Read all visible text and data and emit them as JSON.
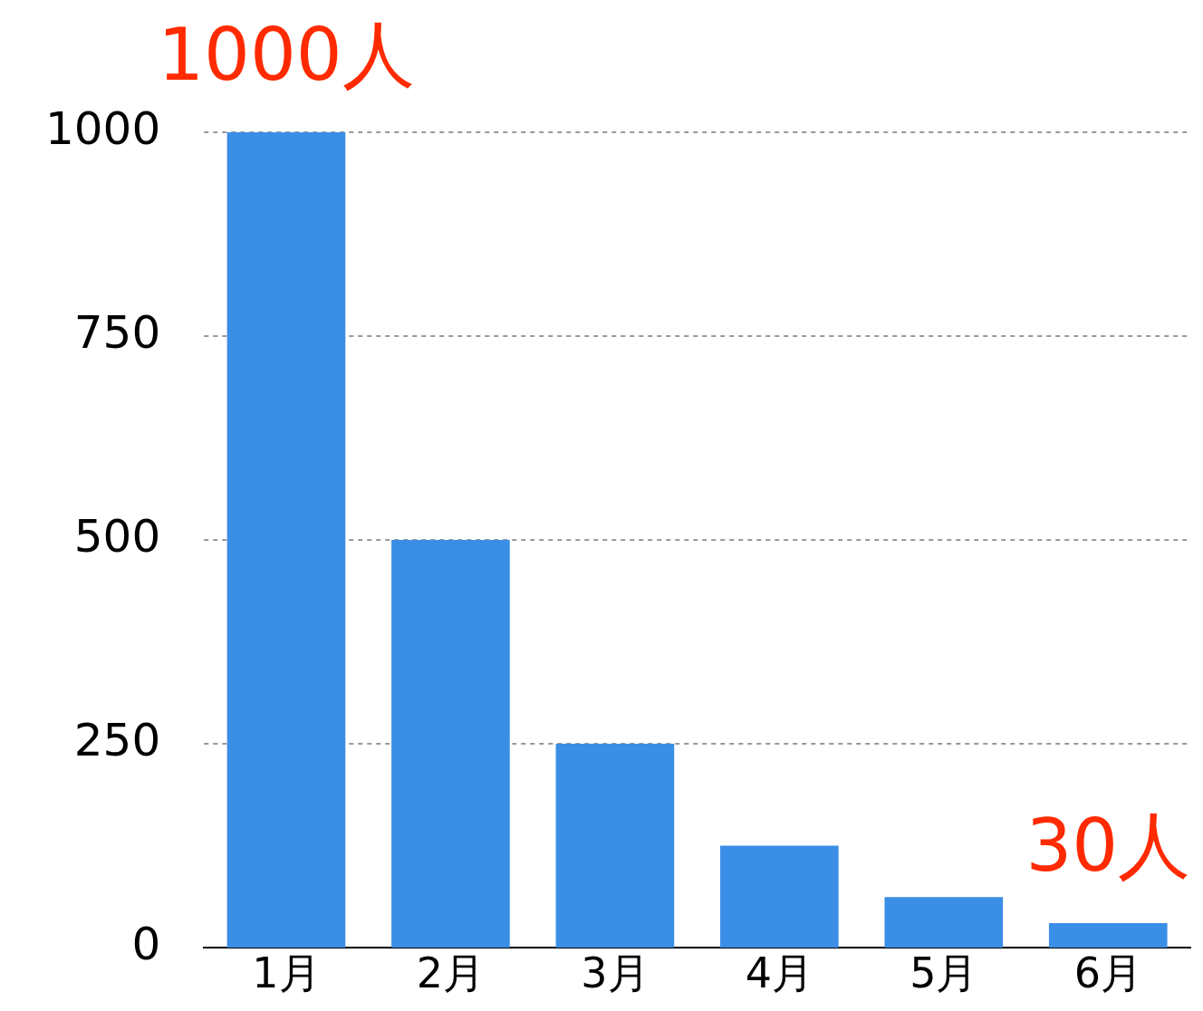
{
  "chart_data": {
    "type": "bar",
    "categories": [
      "1月",
      "2月",
      "3月",
      "4月",
      "5月",
      "6月"
    ],
    "values": [
      1000,
      500,
      250,
      125,
      62,
      30
    ],
    "color": "#3a8ee6",
    "ylim": [
      0,
      1000
    ],
    "yticks": [
      0,
      250,
      500,
      750,
      1000
    ],
    "grid": "y",
    "legend": false,
    "annotations": [
      {
        "text": "1000人",
        "x": "1月",
        "y": 1000
      },
      {
        "text": "30人",
        "x": "6月",
        "y": 30
      }
    ]
  }
}
